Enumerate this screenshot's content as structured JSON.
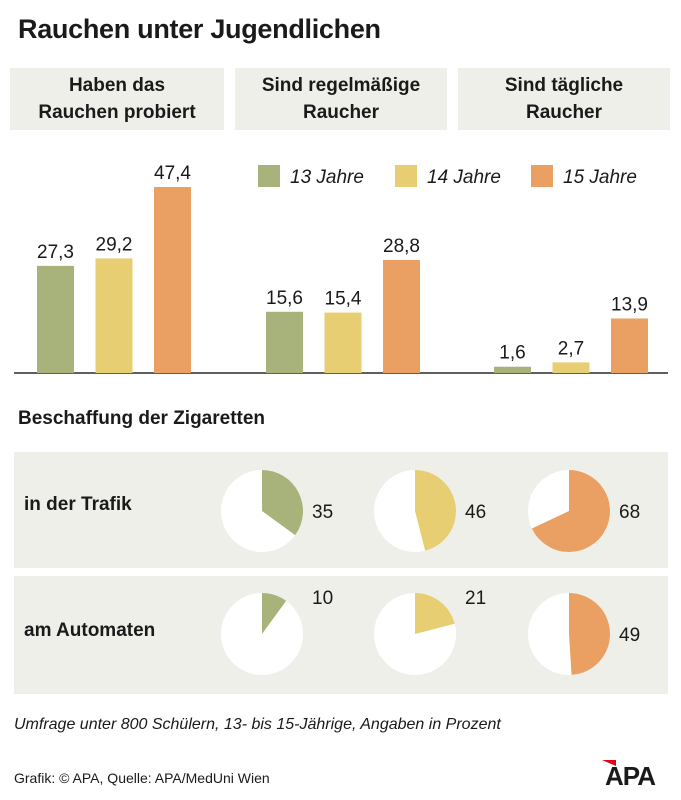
{
  "title": "Rauchen unter Jugendlichen",
  "colors": {
    "y13": "#a8b27b",
    "y14": "#e7ce72",
    "y15": "#e9a062",
    "panel": "#efefea"
  },
  "chart_data": {
    "type": "bar",
    "title": "Rauchen unter Jugendlichen",
    "groups": [
      "Haben das\nRauchen probiert",
      "Sind regelmäßige\nRaucher",
      "Sind tägliche\nRaucher"
    ],
    "series": [
      {
        "name": "13 Jahre",
        "values": [
          27.3,
          15.6,
          1.6
        ],
        "labels": [
          "27,3",
          "15,6",
          "1,6"
        ]
      },
      {
        "name": "14 Jahre",
        "values": [
          29.2,
          15.4,
          2.7
        ],
        "labels": [
          "29,2",
          "15,4",
          "2,7"
        ]
      },
      {
        "name": "15 Jahre",
        "values": [
          47.4,
          28.8,
          13.9
        ],
        "labels": [
          "47,4",
          "28,8",
          "13,9"
        ]
      }
    ],
    "ylim": [
      0,
      50
    ],
    "pies": {
      "heading": "Beschaffung der Zigaretten",
      "rows": [
        {
          "label": "in der Trafik",
          "values": [
            35,
            46,
            68
          ]
        },
        {
          "label": "am Automaten",
          "values": [
            10,
            21,
            49
          ]
        }
      ]
    },
    "unit": "Prozent"
  },
  "footnote": "Umfrage unter 800 Schülern, 13- bis 15-Jährige, Angaben in Prozent",
  "credit": "Grafik: © APA, Quelle: APA/MedUni Wien",
  "logo": "APA"
}
